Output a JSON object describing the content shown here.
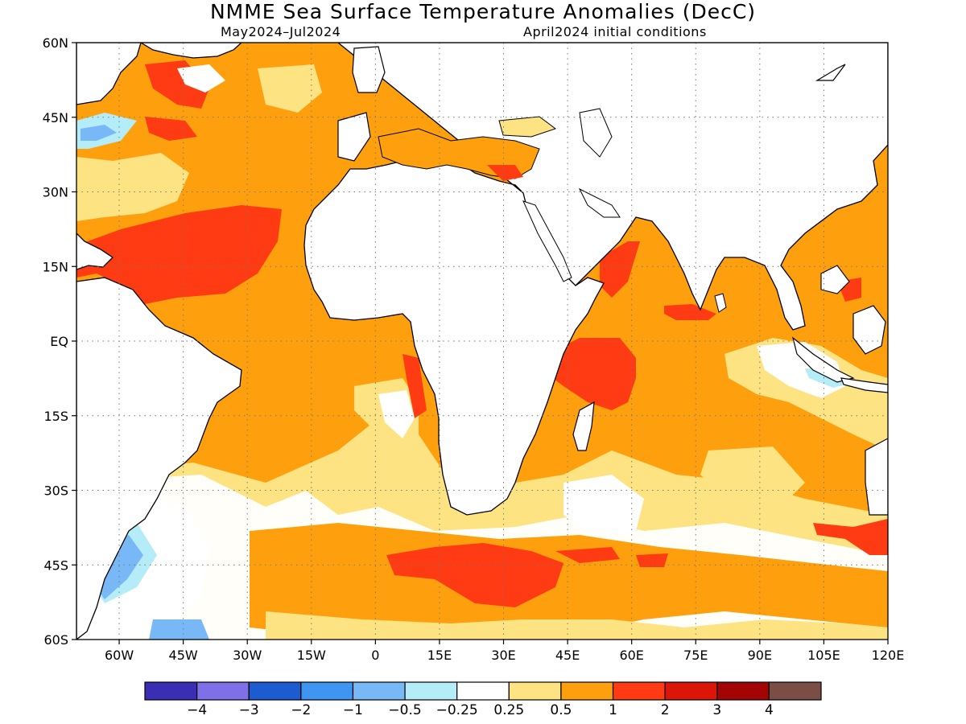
{
  "title": "NMME Sea Surface Temperature Anomalies (DecC)",
  "subtitle_left": "May2024–Jul2024",
  "subtitle_right": "April2024 initial conditions",
  "map": {
    "lon_range": [
      -70,
      120
    ],
    "lat_range": [
      -60,
      60
    ],
    "gridlines": "dotted",
    "lat_ticks": [
      {
        "lat": 60,
        "label": "60N"
      },
      {
        "lat": 45,
        "label": "45N"
      },
      {
        "lat": 30,
        "label": "30N"
      },
      {
        "lat": 15,
        "label": "15N"
      },
      {
        "lat": 0,
        "label": "EQ"
      },
      {
        "lat": -15,
        "label": "15S"
      },
      {
        "lat": -30,
        "label": "30S"
      },
      {
        "lat": -45,
        "label": "45S"
      },
      {
        "lat": -60,
        "label": "60S"
      }
    ],
    "lon_ticks": [
      {
        "lon": -60,
        "label": "60W"
      },
      {
        "lon": -45,
        "label": "45W"
      },
      {
        "lon": -30,
        "label": "30W"
      },
      {
        "lon": -15,
        "label": "15W"
      },
      {
        "lon": 0,
        "label": "0"
      },
      {
        "lon": 15,
        "label": "15E"
      },
      {
        "lon": 30,
        "label": "30E"
      },
      {
        "lon": 45,
        "label": "45E"
      },
      {
        "lon": 60,
        "label": "60E"
      },
      {
        "lon": 75,
        "label": "75E"
      },
      {
        "lon": 90,
        "label": "90E"
      },
      {
        "lon": 105,
        "label": "105E"
      },
      {
        "lon": 120,
        "label": "120E"
      }
    ]
  },
  "colorbar": {
    "colors": [
      "#3a2fb4",
      "#7f6fe8",
      "#1c5cd0",
      "#3f96f2",
      "#78b8f6",
      "#b4ecf8",
      "#ffffff",
      "#fde382",
      "#fea00e",
      "#fe3b12",
      "#dc1606",
      "#a30404",
      "#7a4e44"
    ],
    "labels": [
      "−4",
      "−3",
      "−2",
      "−1",
      "−0.5",
      "−0.25",
      "0.25",
      "0.5",
      "1",
      "2",
      "3",
      "4"
    ]
  }
}
